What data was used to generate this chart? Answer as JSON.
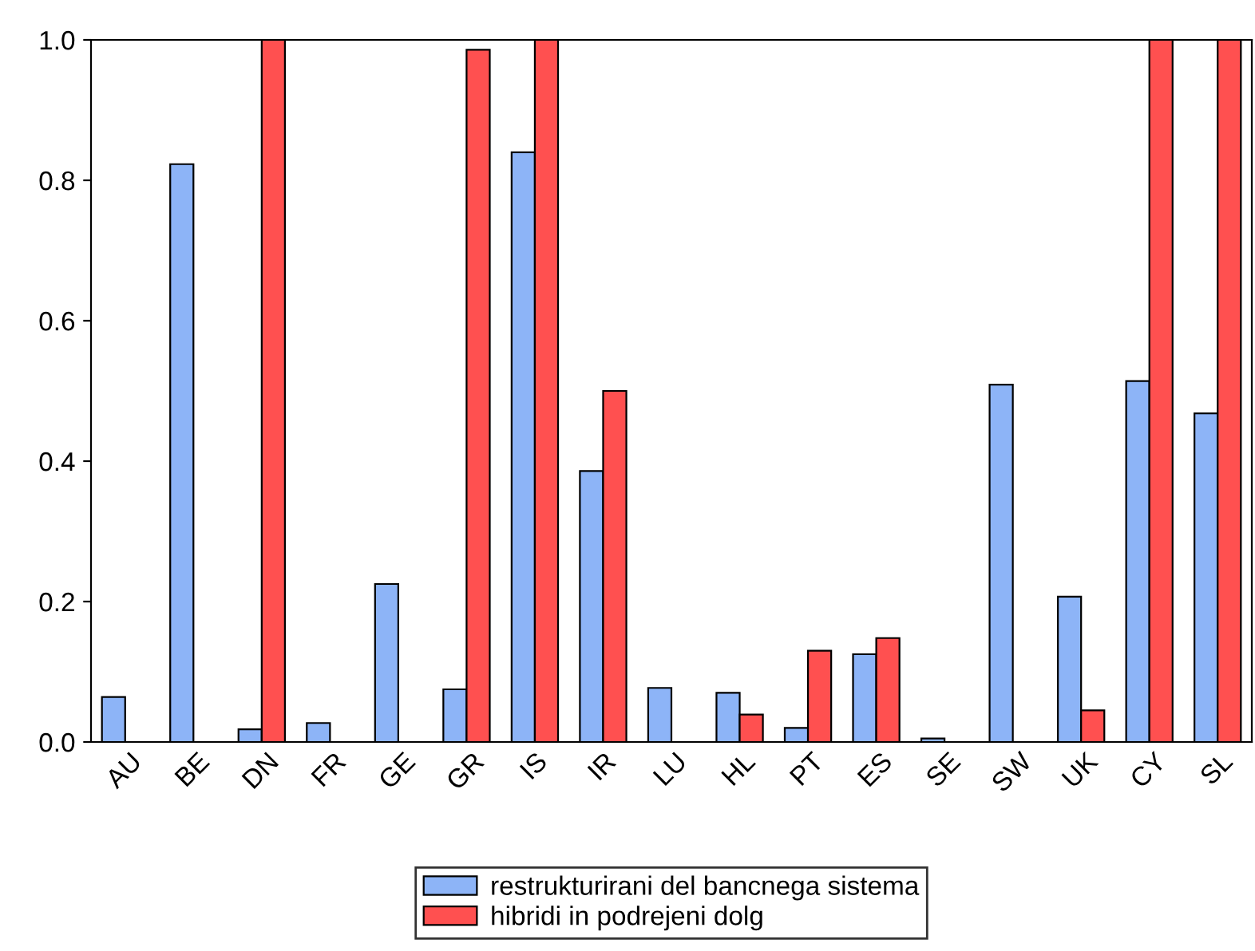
{
  "chart_data": {
    "type": "bar",
    "categories": [
      "AU",
      "BE",
      "DN",
      "FR",
      "GE",
      "GR",
      "IS",
      "IR",
      "LU",
      "HL",
      "PT",
      "ES",
      "SE",
      "SW",
      "UK",
      "CY",
      "SL"
    ],
    "series": [
      {
        "name": "restrukturirani del bancnega sistema",
        "color": "#8db4f7",
        "values": [
          0.064,
          0.823,
          0.018,
          0.027,
          0.225,
          0.075,
          0.84,
          0.386,
          0.077,
          0.07,
          0.02,
          0.125,
          0.005,
          0.509,
          0.207,
          0.514,
          0.468
        ]
      },
      {
        "name": "hibridi in podrejeni dolg",
        "color": "#ff5050",
        "values": [
          null,
          null,
          1.0,
          null,
          null,
          0.986,
          1.0,
          0.5,
          null,
          0.039,
          0.13,
          0.148,
          null,
          null,
          0.045,
          1.0,
          1.0
        ]
      }
    ],
    "ylim": [
      0,
      1.0
    ],
    "yticks": [
      {
        "value": 0,
        "label": "0.0"
      },
      {
        "value": 0.2,
        "label": "0.2"
      },
      {
        "value": 0.4,
        "label": "0.4"
      },
      {
        "value": 0.6,
        "label": "0.6"
      },
      {
        "value": 0.8,
        "label": "0.8"
      },
      {
        "value": 1.0,
        "label": "1.0"
      }
    ],
    "grid": false,
    "legend": "bottom"
  }
}
